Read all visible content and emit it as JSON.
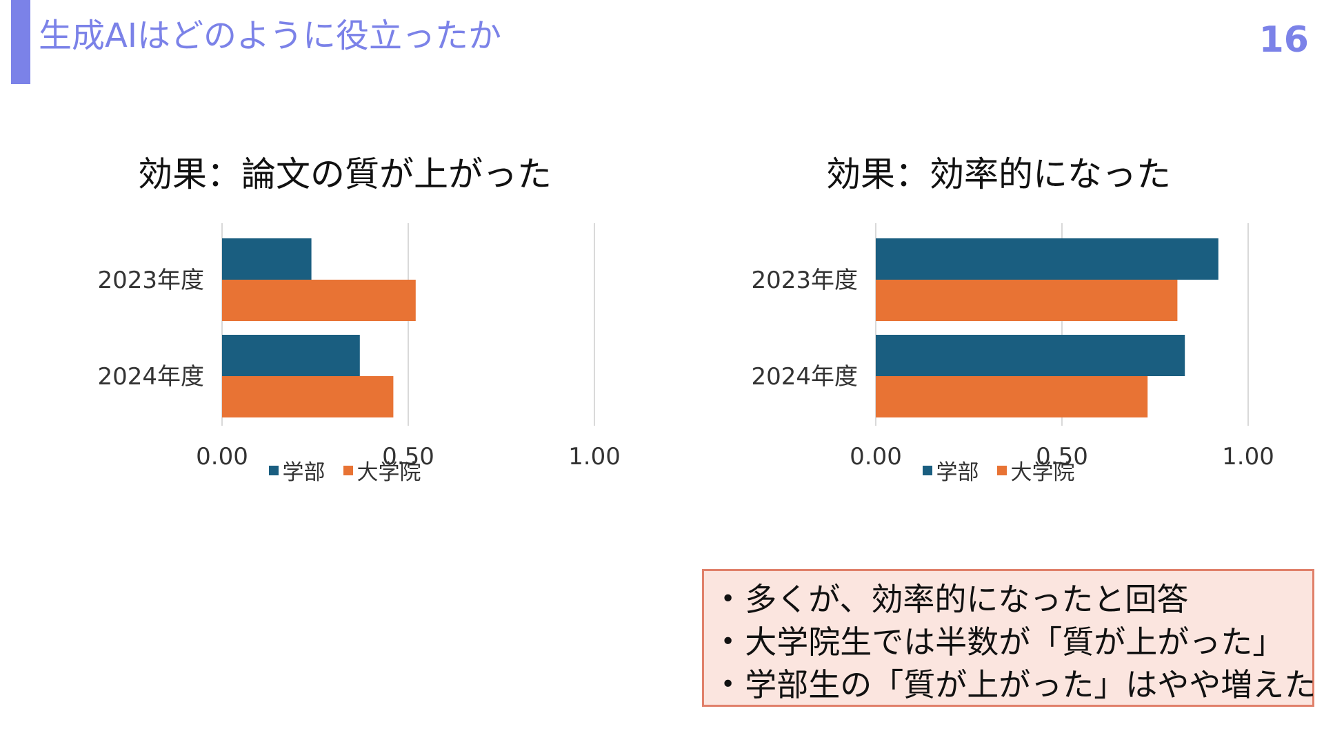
{
  "theme": {
    "accent": "#7b82e8",
    "series_colors": [
      "#1a5e80",
      "#e87334"
    ],
    "grid_color": "#d9d9d9"
  },
  "header": {
    "title": "生成AIはどのように役立ったか",
    "page_number": "16"
  },
  "chart_data": [
    {
      "type": "bar",
      "orientation": "horizontal",
      "title": "効果：論文の質が上がった",
      "categories": [
        "2023年度",
        "2024年度"
      ],
      "series": [
        {
          "name": "学部",
          "values": [
            0.24,
            0.37
          ]
        },
        {
          "name": "大学院",
          "values": [
            0.52,
            0.46
          ]
        }
      ],
      "xlim": [
        0,
        1
      ],
      "tick_labels": [
        "0.00",
        "0.50",
        "1.00"
      ],
      "grid": true,
      "legend": "bottom"
    },
    {
      "type": "bar",
      "orientation": "horizontal",
      "title": "効果：効率的になった",
      "categories": [
        "2023年度",
        "2024年度"
      ],
      "series": [
        {
          "name": "学部",
          "values": [
            0.92,
            0.83
          ]
        },
        {
          "name": "大学院",
          "values": [
            0.81,
            0.73
          ]
        }
      ],
      "xlim": [
        0,
        1
      ],
      "tick_labels": [
        "0.00",
        "0.50",
        "1.00"
      ],
      "grid": true,
      "legend": "bottom"
    }
  ],
  "summary": {
    "bullet": "•",
    "items": [
      "多くが、効率的になったと回答",
      "大学院生では半数が「質が上がった」",
      "学部生の「質が上がった」はやや増えた"
    ]
  }
}
